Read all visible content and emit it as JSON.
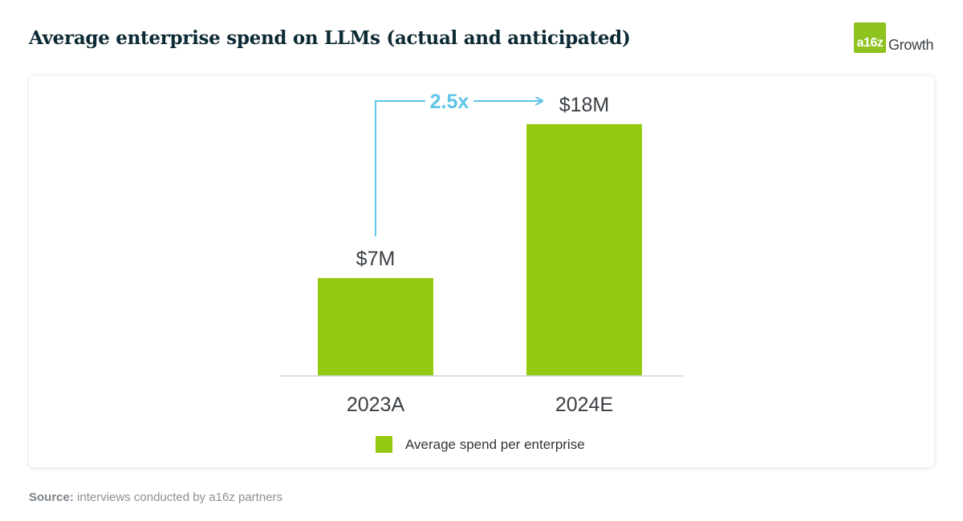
{
  "header": {
    "title": "Average enterprise spend on LLMs (actual and anticipated)",
    "logo_mark": "a16z",
    "logo_word": "Growth",
    "brand_color": "#8dc21f"
  },
  "chart_data": {
    "type": "bar",
    "categories": [
      "2023A",
      "2024E"
    ],
    "series": [
      {
        "name": "Average spend per enterprise",
        "values": [
          7,
          18
        ],
        "color": "#93c90f"
      }
    ],
    "data_labels": [
      "$7M",
      "$18M"
    ],
    "unit": "$M",
    "ylim": [
      0,
      20
    ],
    "grid": false,
    "legend_position": "bottom",
    "annotation": {
      "text": "2.5x",
      "color": "#5ec4e8",
      "from": "2023A",
      "to": "2024E"
    }
  },
  "footer": {
    "source_label": "Source:",
    "source_text": " interviews conducted by a16z partners"
  }
}
